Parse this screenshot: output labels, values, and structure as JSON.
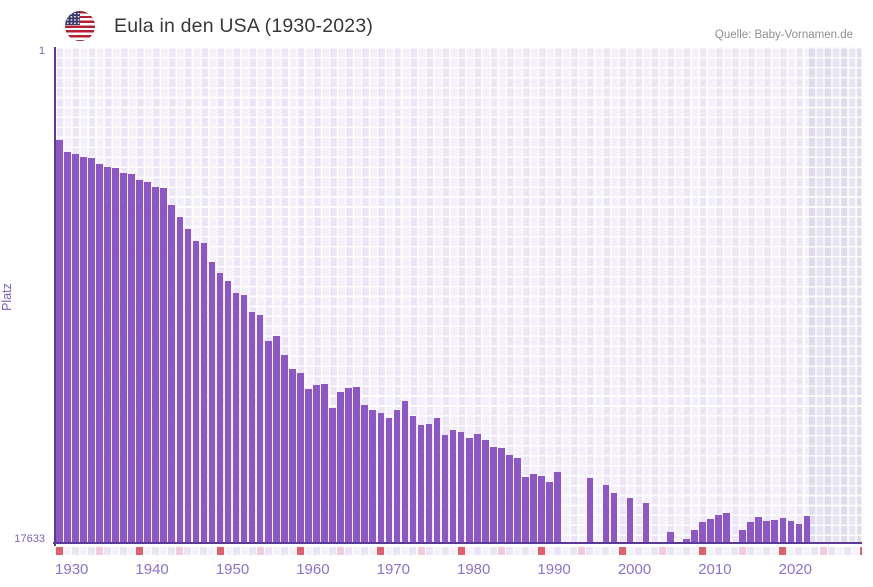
{
  "header": {
    "title": "Eula in den USA (1930-2023)",
    "source": "Quelle: Baby-Vornamen.de",
    "flag_icon": "us-flag-icon"
  },
  "axes": {
    "y_label": "Platz",
    "y_top_tick": "1",
    "y_bottom_tick": "17633",
    "x_tick_labels": [
      "1930",
      "1940",
      "1950",
      "1960",
      "1970",
      "1980",
      "1990",
      "2000",
      "2010",
      "2020"
    ]
  },
  "colors": {
    "bar": "#8d57c6",
    "axis_line": "#5b3a96",
    "tick_label": "#8b72cc",
    "y_label": "#7a5cb8",
    "title": "#383838",
    "source": "#8f8f8f",
    "marker_decade": "#e0606e",
    "marker_half_decade": "#f1cbd7",
    "marker_even_year": "#eae4f3",
    "marker_odd_year": "#f5f2fa",
    "no_data_band": "#e3dfee"
  },
  "chart_data": {
    "type": "bar",
    "title": "Eula in den USA (1930-2023)",
    "xlabel": "",
    "ylabel": "Platz",
    "ylim": [
      1,
      17633
    ],
    "y_inverted": true,
    "x_axis_visible_range": [
      1930,
      2030
    ],
    "no_data_region_start": 2024,
    "legend": "none",
    "grid": true,
    "years": [
      1930,
      1931,
      1932,
      1933,
      1934,
      1935,
      1936,
      1937,
      1938,
      1939,
      1940,
      1941,
      1942,
      1943,
      1944,
      1945,
      1946,
      1947,
      1948,
      1949,
      1950,
      1951,
      1952,
      1953,
      1954,
      1955,
      1956,
      1957,
      1958,
      1959,
      1960,
      1961,
      1962,
      1963,
      1964,
      1965,
      1966,
      1967,
      1968,
      1969,
      1970,
      1971,
      1972,
      1973,
      1974,
      1975,
      1976,
      1977,
      1978,
      1979,
      1980,
      1981,
      1982,
      1983,
      1984,
      1985,
      1986,
      1987,
      1988,
      1989,
      1990,
      1991,
      1992,
      1993,
      1994,
      1995,
      1996,
      1997,
      1998,
      1999,
      2000,
      2001,
      2002,
      2003,
      2004,
      2005,
      2006,
      2007,
      2008,
      2009,
      2010,
      2011,
      2012,
      2013,
      2014,
      2015,
      2016,
      2017,
      2018,
      2019,
      2020,
      2021,
      2022,
      2023
    ],
    "values": [
      3125,
      3556,
      3628,
      3736,
      3772,
      3987,
      4095,
      4131,
      4310,
      4346,
      4562,
      4633,
      4813,
      4849,
      5459,
      5890,
      6321,
      6752,
      6824,
      7506,
      7901,
      8189,
      8619,
      8691,
      9303,
      9411,
      10343,
      10163,
      10846,
      11349,
      11492,
      12067,
      11923,
      11887,
      12749,
      12175,
      12030,
      11995,
      12642,
      12821,
      12929,
      13108,
      12821,
      12499,
      13037,
      13360,
      13324,
      13108,
      13719,
      13540,
      13612,
      13827,
      13684,
      13899,
      14151,
      14186,
      14438,
      14545,
      15228,
      15120,
      15192,
      15407,
      15048,
      null,
      null,
      null,
      15264,
      null,
      15515,
      15802,
      null,
      15982,
      null,
      16161,
      null,
      null,
      17203,
      null,
      17451,
      17131,
      16844,
      16736,
      16593,
      16521,
      null,
      17131,
      16844,
      16665,
      16809,
      16754,
      16701,
      16790,
      16917,
      16629
    ]
  }
}
